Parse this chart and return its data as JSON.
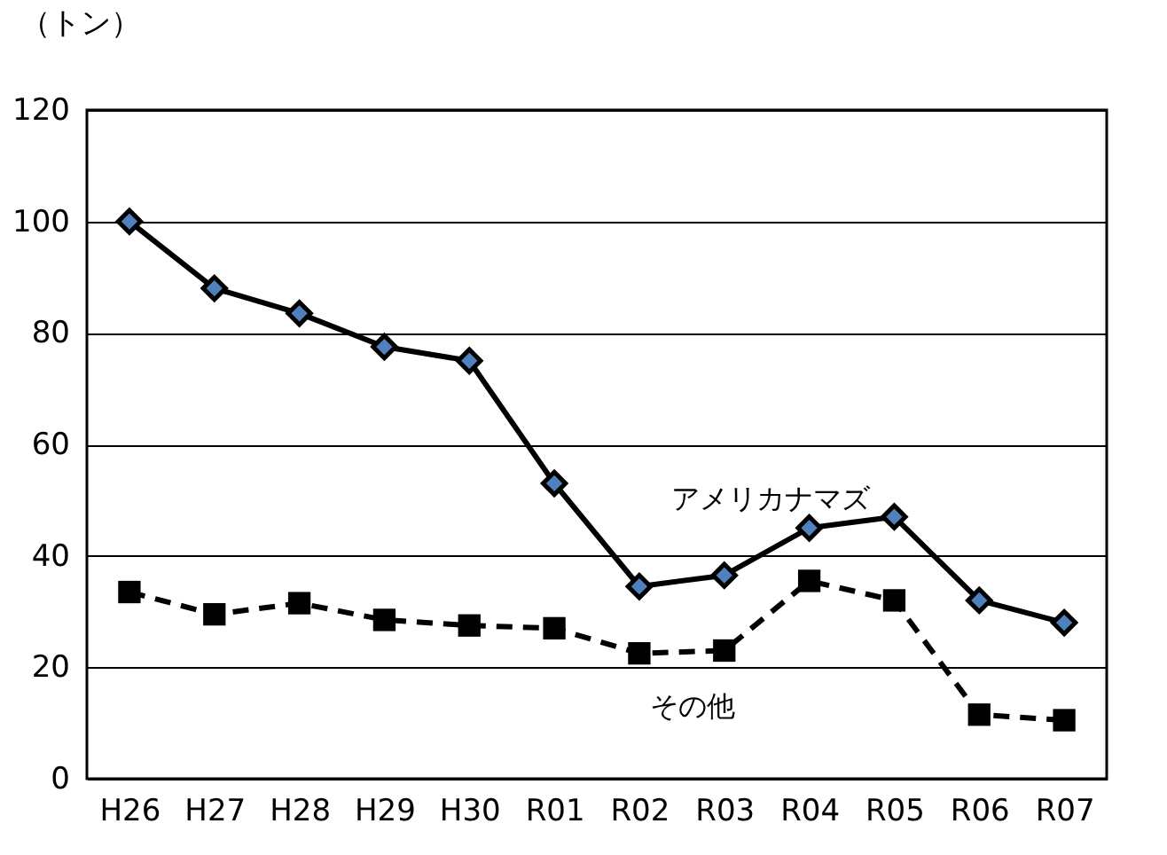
{
  "chart_data": {
    "type": "line",
    "ylabel": "（トン）",
    "categories": [
      "H26",
      "H27",
      "H28",
      "H29",
      "H30",
      "R01",
      "R02",
      "R03",
      "R04",
      "R05",
      "R06",
      "R07"
    ],
    "series": [
      {
        "name": "アメリカナマズ",
        "color": "#000000",
        "marker": "diamond",
        "line_style": "solid",
        "values": [
          100,
          88,
          83.5,
          77.5,
          75,
          53,
          34.5,
          36.5,
          45,
          47,
          32,
          28
        ]
      },
      {
        "name": "その他",
        "color": "#000000",
        "marker": "square",
        "line_style": "dashed",
        "values": [
          33.5,
          29.5,
          31.5,
          28.5,
          27.5,
          27,
          22.5,
          23,
          35.5,
          32,
          11.5,
          10.5
        ]
      }
    ],
    "ylim": [
      0,
      120
    ],
    "yticks": [
      0,
      20,
      40,
      60,
      80,
      100,
      120
    ],
    "grid": "y",
    "legend": false
  }
}
